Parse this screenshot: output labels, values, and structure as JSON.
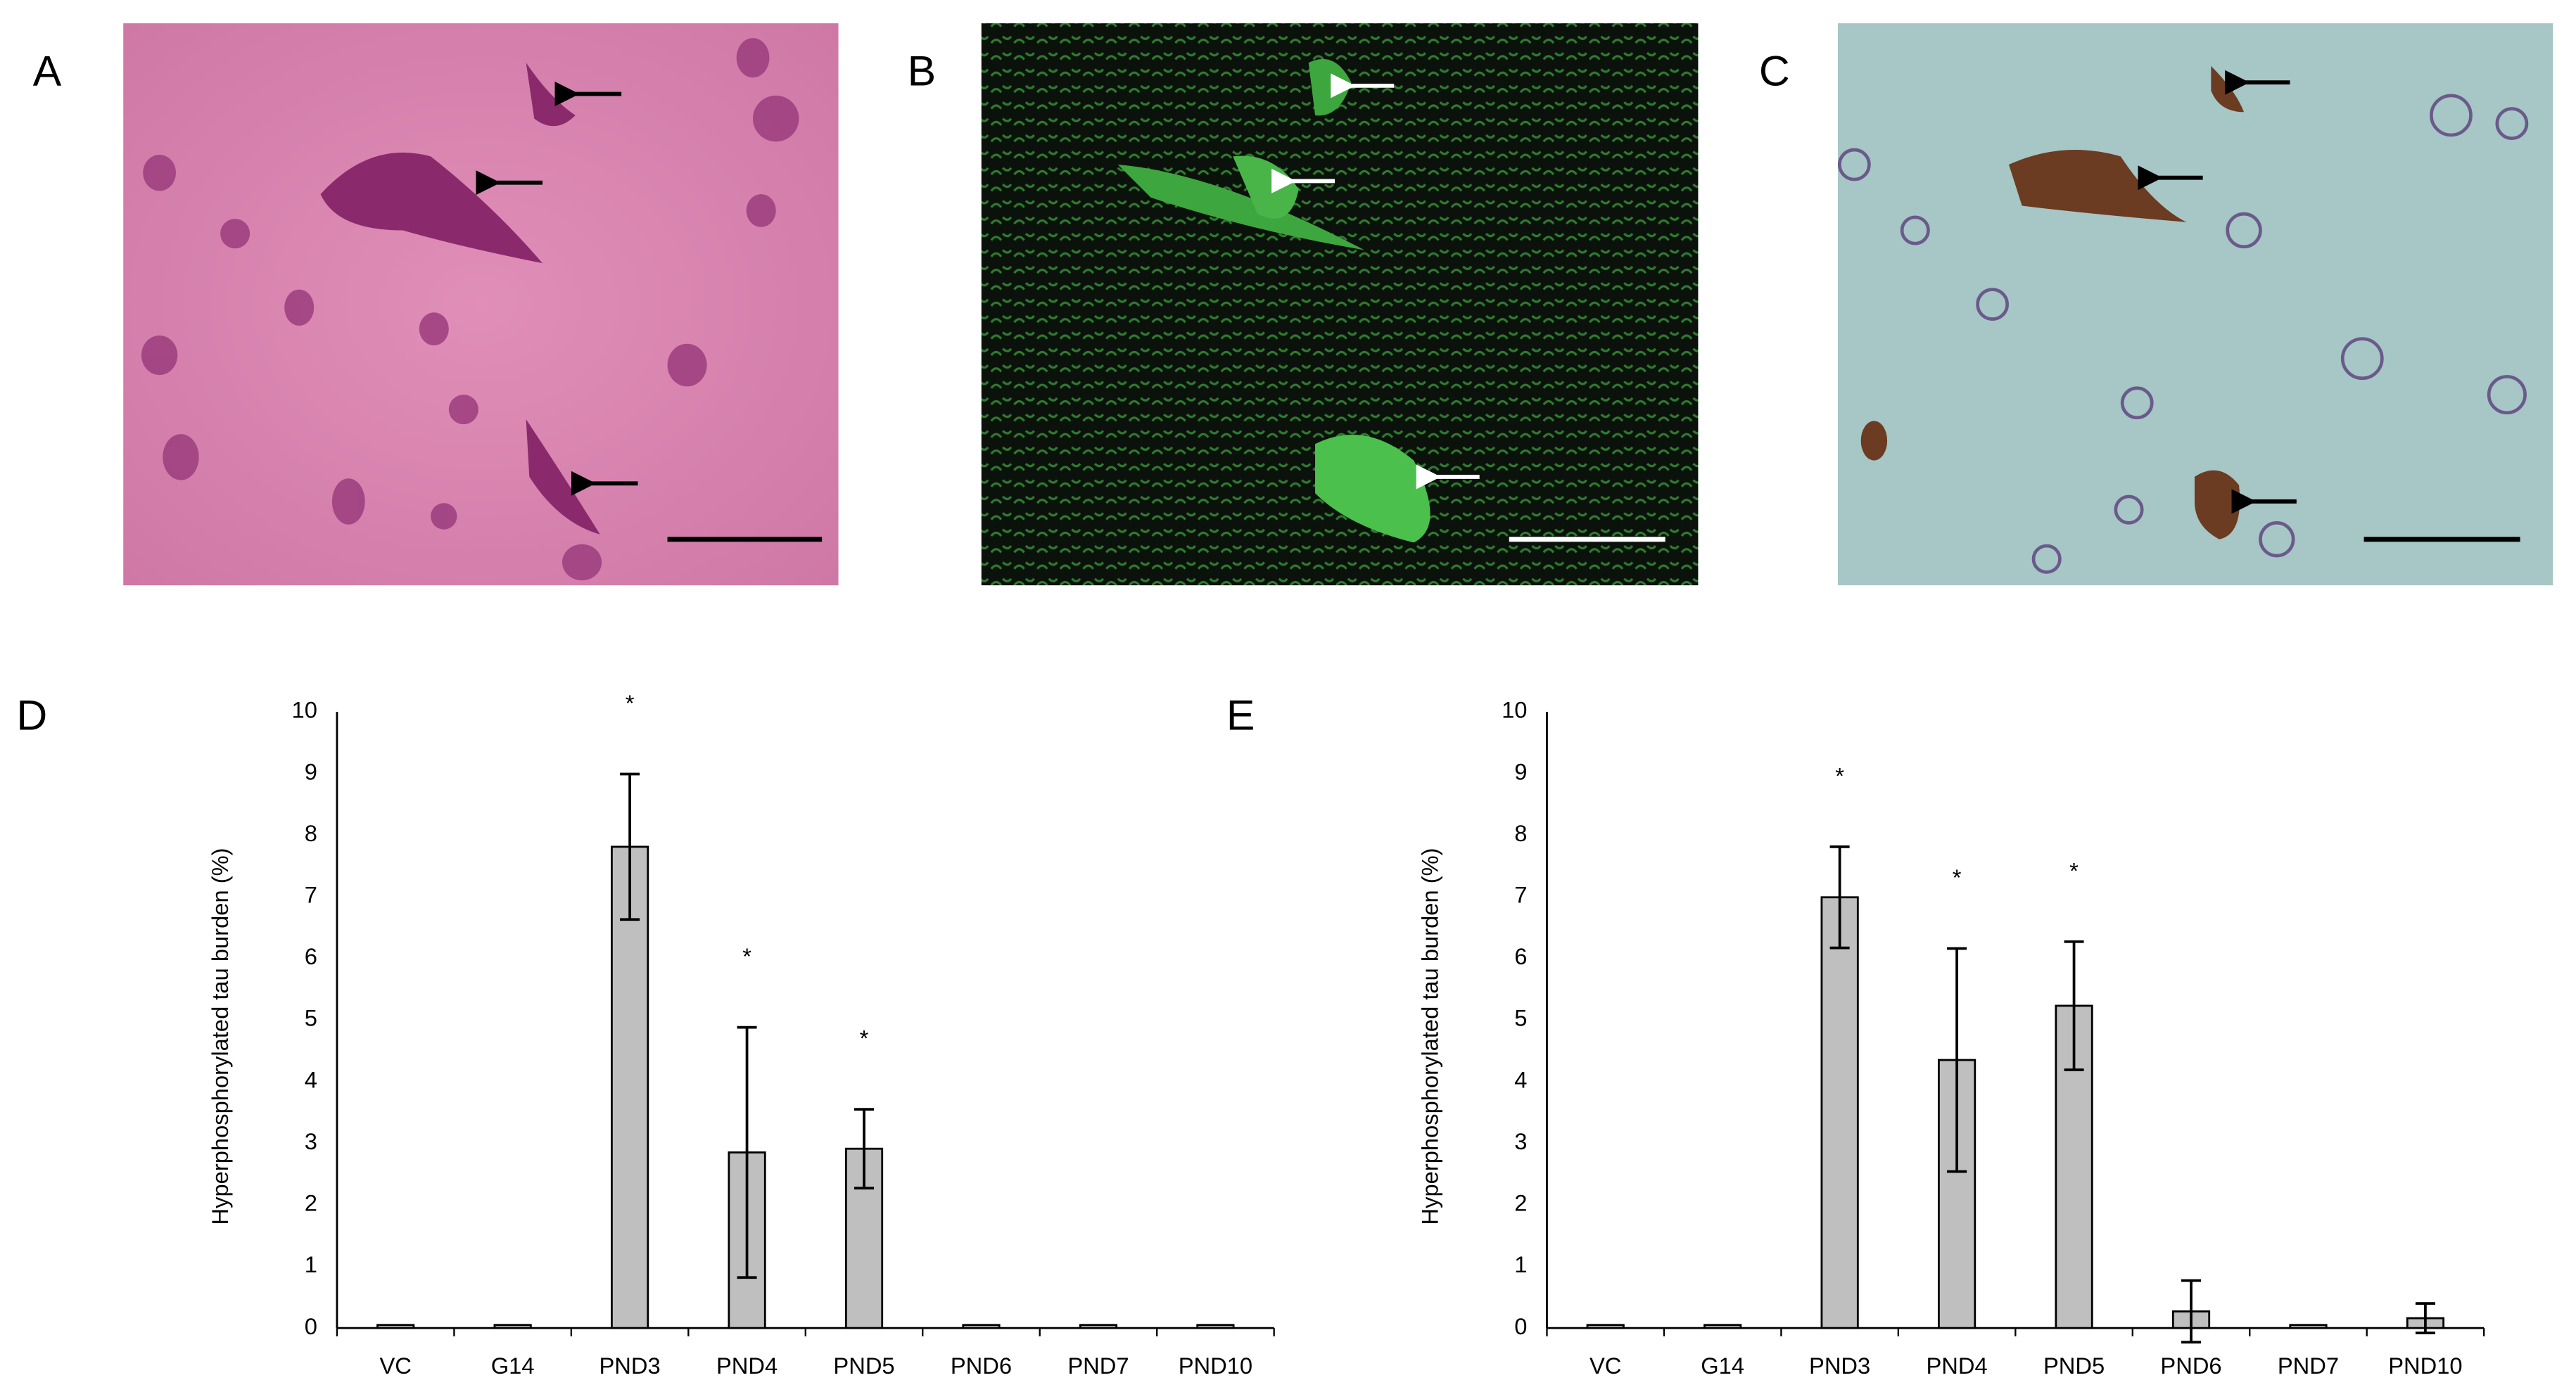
{
  "panels": [
    {
      "label": "A"
    },
    {
      "label": "B"
    },
    {
      "label": "C"
    }
  ],
  "chart_data": [
    {
      "type": "bar",
      "panel_label": "D",
      "y_label": "Hyperphosphorylated  tau burden (%)",
      "categories": [
        "VC",
        "G14",
        "PND3",
        "PND4",
        "PND5",
        "PND6",
        "PND7",
        "PND10"
      ],
      "values": [
        0.05,
        0.05,
        7.81,
        2.85,
        2.91,
        0.05,
        0.05,
        0.05
      ],
      "errors": [
        0,
        0,
        1.18,
        2.03,
        0.64,
        0,
        0,
        0
      ],
      "significance": [
        null,
        null,
        "*",
        "*",
        "*",
        null,
        null,
        null
      ],
      "color": "#bfbfbf",
      "ylim": [
        0,
        10
      ],
      "yticks": [
        0,
        1,
        2,
        3,
        4,
        5,
        6,
        7,
        8,
        9,
        10
      ]
    },
    {
      "type": "bar",
      "panel_label": "E",
      "y_label": "Hyperphosphorylated  tau burden (%)",
      "categories": [
        "VC",
        "G14",
        "PND3",
        "PND4",
        "PND5",
        "PND6",
        "PND7",
        "PND10"
      ],
      "values": [
        0.05,
        0.05,
        6.99,
        4.35,
        5.23,
        0.27,
        0.05,
        0.16
      ],
      "errors": [
        0,
        0,
        0.82,
        1.81,
        1.04,
        0.5,
        0,
        0.24
      ],
      "significance": [
        null,
        null,
        "*",
        "*",
        "*",
        null,
        null,
        null
      ],
      "color": "#bfbfbf",
      "ylim": [
        0,
        10
      ],
      "yticks": [
        0,
        1,
        2,
        3,
        4,
        5,
        6,
        7,
        8,
        9,
        10
      ]
    }
  ]
}
